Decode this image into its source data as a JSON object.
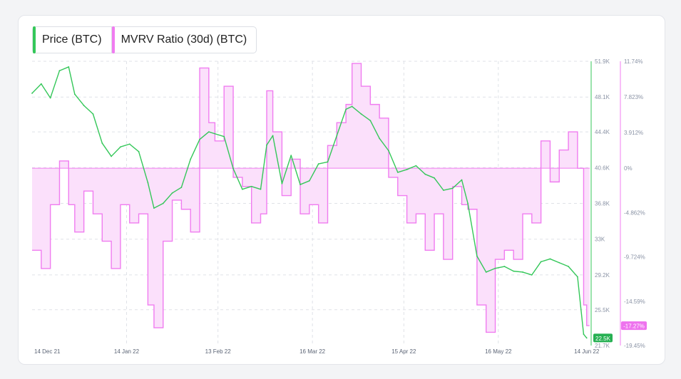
{
  "colors": {
    "price": "#34c759",
    "mvrv": "#f07cf0",
    "mvrv_fill": "#fbe0fb",
    "grid": "#dfe2e7",
    "axis_text": "#8a93a5",
    "price_badge": "#26b052",
    "mvrv_badge": "#ee72ee"
  },
  "legend": [
    {
      "label": "Price (BTC)"
    },
    {
      "label": "MVRV Ratio (30d) (BTC)"
    }
  ],
  "badges": {
    "price": "22.5K",
    "mvrv": "-17.27%"
  },
  "chart_data": {
    "type": "line",
    "x_tick_labels": [
      "14 Dec 21",
      "14 Jan 22",
      "13 Feb 22",
      "16 Mar 22",
      "15 Apr 22",
      "16 May 22",
      "14 Jun 22"
    ],
    "price_axis": {
      "ticks": [
        "51.9K",
        "48.1K",
        "44.4K",
        "40.6K",
        "36.8K",
        "33K",
        "29.2K",
        "25.5K",
        "21.7K"
      ],
      "ylim": [
        21700,
        51900
      ]
    },
    "mvrv_axis": {
      "ticks": [
        "11.74%",
        "7.823%",
        "3.912%",
        "0%",
        "-4.862%",
        "-9.724%",
        "-14.59%",
        "-19.45%"
      ],
      "ylim": [
        -19.45,
        11.74
      ]
    },
    "series": [
      {
        "name": "Price (BTC)",
        "x": [
          "2021-12-14",
          "2021-12-17",
          "2021-12-20",
          "2021-12-23",
          "2021-12-26",
          "2021-12-28",
          "2021-12-31",
          "2022-01-03",
          "2022-01-06",
          "2022-01-09",
          "2022-01-12",
          "2022-01-15",
          "2022-01-18",
          "2022-01-21",
          "2022-01-23",
          "2022-01-26",
          "2022-01-29",
          "2022-02-01",
          "2022-02-04",
          "2022-02-07",
          "2022-02-10",
          "2022-02-12",
          "2022-02-15",
          "2022-02-18",
          "2022-02-21",
          "2022-02-24",
          "2022-02-27",
          "2022-03-01",
          "2022-03-03",
          "2022-03-06",
          "2022-03-09",
          "2022-03-12",
          "2022-03-15",
          "2022-03-18",
          "2022-03-21",
          "2022-03-24",
          "2022-03-27",
          "2022-03-29",
          "2022-04-01",
          "2022-04-04",
          "2022-04-07",
          "2022-04-10",
          "2022-04-13",
          "2022-04-16",
          "2022-04-19",
          "2022-04-22",
          "2022-04-25",
          "2022-04-28",
          "2022-05-01",
          "2022-05-04",
          "2022-05-06",
          "2022-05-09",
          "2022-05-12",
          "2022-05-15",
          "2022-05-18",
          "2022-05-21",
          "2022-05-24",
          "2022-05-27",
          "2022-05-30",
          "2022-06-02",
          "2022-06-05",
          "2022-06-08",
          "2022-06-11",
          "2022-06-13",
          "2022-06-14"
        ],
        "values": [
          48500,
          49500,
          48000,
          50900,
          51300,
          48400,
          47200,
          46300,
          43200,
          41800,
          42800,
          43100,
          42300,
          39000,
          36300,
          36800,
          37900,
          38500,
          41500,
          43600,
          44400,
          44200,
          43900,
          40500,
          38300,
          38600,
          38300,
          43000,
          44000,
          38900,
          41900,
          38800,
          39200,
          41000,
          41200,
          44000,
          46800,
          47100,
          46300,
          45600,
          43700,
          42400,
          40100,
          40400,
          40800,
          39900,
          39500,
          38200,
          38400,
          39300,
          36800,
          31200,
          29500,
          29900,
          30100,
          29600,
          29500,
          29200,
          30600,
          30900,
          30500,
          30100,
          29000,
          22900,
          22500
        ]
      },
      {
        "name": "MVRV Ratio (30d) (BTC)",
        "x": [
          "2021-12-14",
          "2021-12-17",
          "2021-12-20",
          "2021-12-23",
          "2021-12-26",
          "2021-12-28",
          "2021-12-31",
          "2022-01-03",
          "2022-01-06",
          "2022-01-09",
          "2022-01-12",
          "2022-01-15",
          "2022-01-18",
          "2022-01-21",
          "2022-01-23",
          "2022-01-26",
          "2022-01-29",
          "2022-02-01",
          "2022-02-04",
          "2022-02-07",
          "2022-02-10",
          "2022-02-12",
          "2022-02-15",
          "2022-02-18",
          "2022-02-21",
          "2022-02-24",
          "2022-02-27",
          "2022-03-01",
          "2022-03-03",
          "2022-03-06",
          "2022-03-09",
          "2022-03-12",
          "2022-03-15",
          "2022-03-18",
          "2022-03-21",
          "2022-03-24",
          "2022-03-27",
          "2022-03-29",
          "2022-04-01",
          "2022-04-04",
          "2022-04-07",
          "2022-04-10",
          "2022-04-13",
          "2022-04-16",
          "2022-04-19",
          "2022-04-22",
          "2022-04-25",
          "2022-04-28",
          "2022-05-01",
          "2022-05-04",
          "2022-05-06",
          "2022-05-09",
          "2022-05-12",
          "2022-05-15",
          "2022-05-18",
          "2022-05-21",
          "2022-05-24",
          "2022-05-27",
          "2022-05-30",
          "2022-06-02",
          "2022-06-05",
          "2022-06-08",
          "2022-06-11",
          "2022-06-13",
          "2022-06-14"
        ],
        "values": [
          -9.0,
          -11.0,
          -4.0,
          0.8,
          -4.0,
          -7.0,
          -2.5,
          -5.0,
          -8.0,
          -11.0,
          -4.0,
          -6.0,
          -5.0,
          -15.0,
          -17.5,
          -8.0,
          -3.5,
          -4.5,
          -7.0,
          11.0,
          5.0,
          3.0,
          9.0,
          -1.0,
          -2.0,
          -6.0,
          -5.0,
          8.5,
          4.0,
          -3.0,
          1.0,
          -5.0,
          -4.0,
          -6.0,
          2.5,
          5.0,
          7.0,
          11.5,
          9.0,
          7.0,
          5.5,
          -1.0,
          -3.0,
          -6.0,
          -5.0,
          -9.0,
          -5.0,
          -10.0,
          -2.0,
          -4.0,
          -4.5,
          -15.0,
          -18.0,
          -10.0,
          -9.0,
          -10.0,
          -5.0,
          -6.0,
          3.0,
          -1.5,
          2.0,
          4.0,
          0.0,
          -15.0,
          -17.27
        ]
      }
    ],
    "grid": true,
    "legend_position": "top-left"
  }
}
